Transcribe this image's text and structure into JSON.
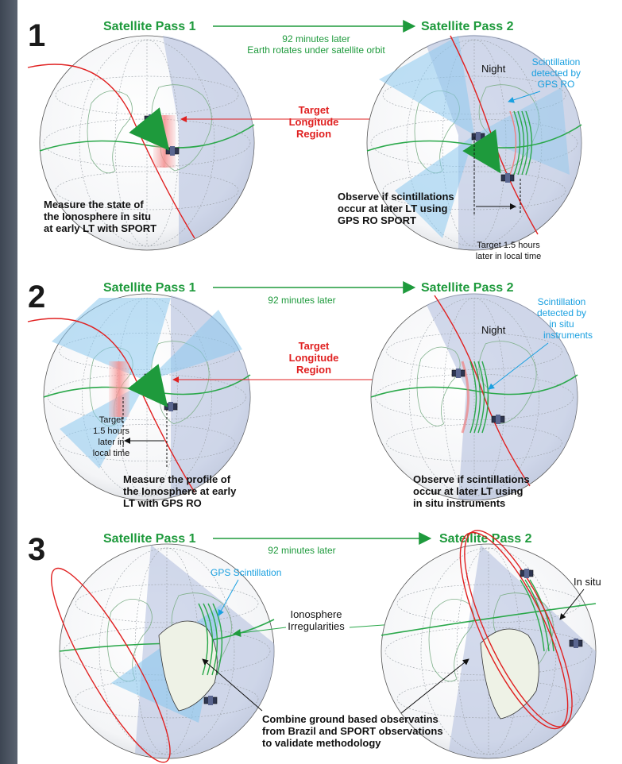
{
  "panel1": {
    "number": "1",
    "pass1": "Satellite Pass 1",
    "pass2": "Satellite Pass 2",
    "arrow_line1": "92 minutes later",
    "arrow_line2": "Earth rotates under satellite orbit",
    "target": [
      "Target",
      "Longitude",
      "Region"
    ],
    "night": "Night",
    "scint": [
      "Scintillation",
      "detected by",
      "GPS RO"
    ],
    "left_caption": [
      "Measure the state of",
      "the Ionosphere in situ",
      "at early LT with SPORT"
    ],
    "right_caption": [
      "Observe if scintillations",
      "occur at later LT using",
      "GPS RO SPORT"
    ],
    "target_time": [
      "Target 1.5 hours",
      "later in local time"
    ]
  },
  "panel2": {
    "number": "2",
    "pass1": "Satellite Pass 1",
    "pass2": "Satellite Pass 2",
    "arrow_line1": "92 minutes later",
    "target": [
      "Target",
      "Longitude",
      "Region"
    ],
    "night": "Night",
    "scint": [
      "Scintillation",
      "detected by",
      "in situ",
      "instruments"
    ],
    "target_time": [
      "Target",
      "1.5 hours",
      "later in",
      "local time"
    ],
    "left_caption": [
      "Measure the profile of",
      "the Ionosphere at early",
      "LT with GPS RO"
    ],
    "right_caption": [
      "Observe if scintillations",
      "occur at later LT using",
      "in situ instruments"
    ]
  },
  "panel3": {
    "number": "3",
    "pass1": "Satellite Pass 1",
    "pass2": "Satellite Pass 2",
    "arrow_line1": "92 minutes later",
    "gps_scint": "GPS Scintillation",
    "irreg": [
      "Ionosphere",
      "Irregularities"
    ],
    "insitu": "In situ",
    "caption": [
      "Combine ground based observatins",
      "from Brazil and SPORT observations",
      "to validate methodology"
    ]
  },
  "colors": {
    "green": "#1e9a3c",
    "red": "#e02020",
    "cyan": "#1aa0e0",
    "night_shade": "#aebcdc",
    "beam": "#8cc8ee"
  }
}
